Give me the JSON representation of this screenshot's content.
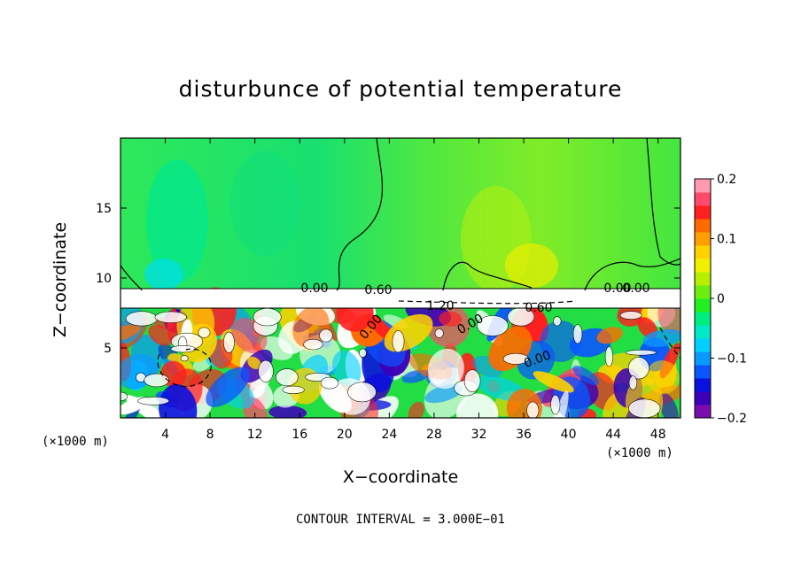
{
  "chart_data": {
    "type": "heatmap",
    "title": "disturbunce of potential temperature",
    "xlabel": "X−coordinate",
    "ylabel": "Z−coordinate",
    "x_unit_left": "(×1000 m)",
    "x_unit_right": "(×1000 m)",
    "xlim": [
      0,
      50
    ],
    "ylim": [
      0,
      20
    ],
    "xticks": [
      4,
      8,
      12,
      16,
      20,
      24,
      28,
      32,
      36,
      40,
      44,
      48
    ],
    "yticks": [
      5,
      10,
      15
    ],
    "colorbar": {
      "range": [
        -0.2,
        0.2
      ],
      "tick_labels": [
        "0.2",
        "0.1",
        "0",
        "−0.1",
        "−0.2"
      ],
      "tick_values": [
        0.2,
        0.1,
        0,
        -0.1,
        -0.2
      ],
      "colors": [
        "#7b0cb0",
        "#3b00b8",
        "#0a10e0",
        "#0a55ff",
        "#0a99ff",
        "#00cfff",
        "#00e8c8",
        "#00ee80",
        "#22ee22",
        "#6cee10",
        "#b8ee00",
        "#f0f000",
        "#ffd200",
        "#ffa000",
        "#ff6a00",
        "#ff2020",
        "#ff4a6a",
        "#ff9ab0"
      ]
    },
    "contour_labels": [
      "0.00",
      "0.60",
      "1.20",
      "0.60",
      "0.00",
      "0.00",
      "0.00",
      "0.00",
      "0.00"
    ],
    "contour_interval": "CONTOUR INTERVAL = 3.000E−01"
  }
}
